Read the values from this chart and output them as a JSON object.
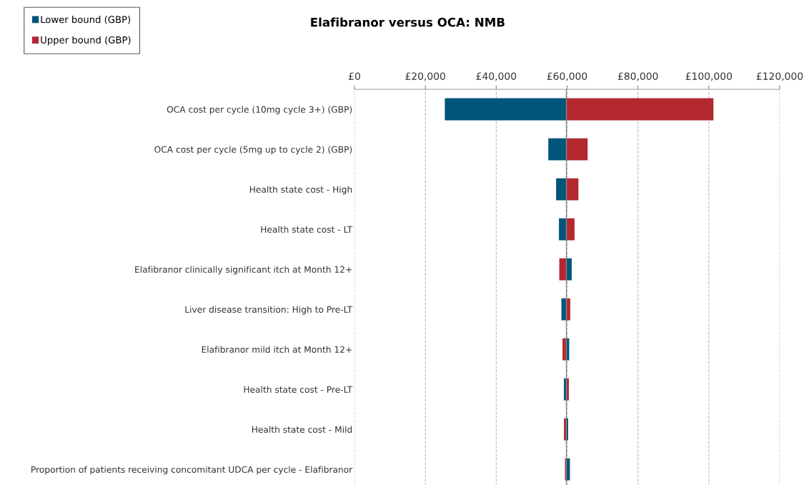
{
  "chart_data": {
    "type": "bar",
    "orientation": "horizontal",
    "title": "Elafibranor versus OCA: NMB",
    "categories": [
      "OCA cost per cycle (10mg cycle 3+) (GBP)",
      "OCA cost per cycle (5mg up to cycle 2) (GBP)",
      "Health state cost - High",
      "Health state cost - LT",
      "Elafibranor clinically significant itch at Month 12+",
      "Liver disease transition: High to Pre-LT",
      "Elafibranor mild itch at Month 12+",
      "Health state cost - Pre-LT",
      "Health state cost - Mild",
      "Proportion of patients receiving concomitant UDCA per cycle - Elafibranor"
    ],
    "series": [
      {
        "name": "Lower bound (GBP)",
        "color": "#00557a",
        "base": [
          59800,
          59800,
          59800,
          59800,
          59800,
          59800,
          59800,
          59800,
          59800,
          59800
        ],
        "values": [
          -34300,
          -5100,
          -2900,
          -2100,
          1500,
          -1400,
          800,
          -700,
          500,
          1000
        ]
      },
      {
        "name": "Upper bound (GBP)",
        "color": "#b3282f",
        "base": [
          59800,
          59800,
          59800,
          59800,
          59800,
          59800,
          59800,
          59800,
          59800,
          59800
        ],
        "values": [
          41500,
          6000,
          3400,
          2300,
          -2000,
          1100,
          -1100,
          700,
          -700,
          -400
        ]
      }
    ],
    "xlim": [
      0,
      120000
    ],
    "xticks": [
      {
        "value": 0,
        "label": "£0"
      },
      {
        "value": 20000,
        "label": "£20,000"
      },
      {
        "value": 40000,
        "label": "£40,000"
      },
      {
        "value": 60000,
        "label": "£60,000"
      },
      {
        "value": 80000,
        "label": "£80,000"
      },
      {
        "value": 100000,
        "label": "£100,000"
      },
      {
        "value": 120000,
        "label": "£120,000"
      }
    ],
    "ref_lines": [
      {
        "axis": "x",
        "value": 59800,
        "color": "#888888",
        "line_style": "solid"
      }
    ],
    "grid": "x",
    "legend": "top left"
  }
}
